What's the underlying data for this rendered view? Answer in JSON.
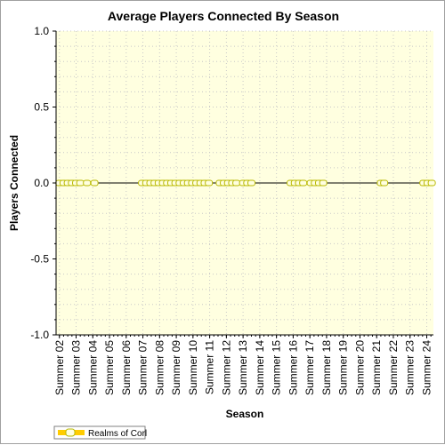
{
  "chart_data": {
    "type": "line",
    "title": "Average Players Connected By Season",
    "xlabel": "Season",
    "ylabel": "Players Connected",
    "ylim": [
      -1.0,
      1.0
    ],
    "y_ticks": [
      "1.0",
      "0.5",
      "0.0",
      "-0.5",
      "-1.0"
    ],
    "x_tick_labels": [
      "Summer 02",
      "Summer 03",
      "Summer 04",
      "Summer 05",
      "Summer 06",
      "Summer 07",
      "Summer 08",
      "Summer 09",
      "Summer 10",
      "Summer 11",
      "Summer 12",
      "Summer 13",
      "Summer 14",
      "Summer 15",
      "Summer 16",
      "Summer 17",
      "Summer 18",
      "Summer 19",
      "Summer 20",
      "Summer 21",
      "Summer 22",
      "Summer 23",
      "Summer 24"
    ],
    "x_range": [
      1.8,
      24.4
    ],
    "grid": true,
    "legend_position": "bottom-left",
    "series": [
      {
        "name": "Realms of Corl",
        "color": "#ffcc00",
        "marker": "circle",
        "points": [
          [
            2.0,
            0
          ],
          [
            2.25,
            0
          ],
          [
            2.5,
            0
          ],
          [
            2.75,
            0
          ],
          [
            3.0,
            0
          ],
          [
            3.25,
            0
          ],
          [
            3.65,
            0
          ],
          [
            4.1,
            0
          ],
          [
            6.95,
            0
          ],
          [
            7.2,
            0
          ],
          [
            7.45,
            0
          ],
          [
            7.7,
            0
          ],
          [
            7.95,
            0
          ],
          [
            8.2,
            0
          ],
          [
            8.45,
            0
          ],
          [
            8.7,
            0
          ],
          [
            8.95,
            0
          ],
          [
            9.2,
            0
          ],
          [
            9.45,
            0
          ],
          [
            9.7,
            0
          ],
          [
            9.95,
            0
          ],
          [
            10.2,
            0
          ],
          [
            10.45,
            0
          ],
          [
            10.7,
            0
          ],
          [
            10.95,
            0
          ],
          [
            11.6,
            0
          ],
          [
            11.85,
            0
          ],
          [
            12.1,
            0
          ],
          [
            12.35,
            0
          ],
          [
            12.6,
            0
          ],
          [
            13.0,
            0
          ],
          [
            13.25,
            0
          ],
          [
            13.5,
            0
          ],
          [
            15.85,
            0
          ],
          [
            16.1,
            0
          ],
          [
            16.35,
            0
          ],
          [
            16.6,
            0
          ],
          [
            17.05,
            0
          ],
          [
            17.3,
            0
          ],
          [
            17.55,
            0
          ],
          [
            17.8,
            0
          ],
          [
            21.25,
            0
          ],
          [
            21.45,
            0
          ],
          [
            23.8,
            0
          ],
          [
            24.05,
            0
          ],
          [
            24.3,
            0
          ]
        ]
      }
    ]
  }
}
